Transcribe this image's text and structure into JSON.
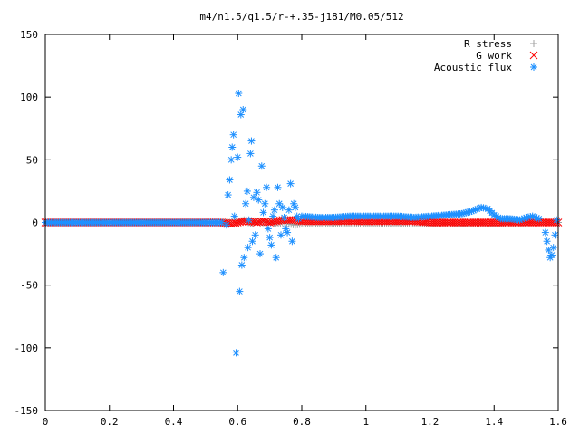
{
  "chart_data": {
    "type": "scatter",
    "title": "m4/n1.5/q1.5/r-+.35-j181/M0.05/512",
    "xlabel": "",
    "ylabel": "",
    "xlim": [
      0,
      1.6
    ],
    "ylim": [
      -150,
      150
    ],
    "x_ticks": [
      "0",
      "0.2",
      "0.4",
      "0.6",
      "0.8",
      "1",
      "1.2",
      "1.4",
      "1.6"
    ],
    "y_ticks": [
      "150",
      "100",
      "50",
      "0",
      "-50",
      "-100",
      "-150"
    ],
    "legend_position": "top-right",
    "series": [
      {
        "name": "R stress",
        "marker": "plus",
        "color": "#a0a0a0",
        "points": [
          [
            0.0,
            0
          ],
          [
            0.1,
            0
          ],
          [
            0.2,
            0
          ],
          [
            0.3,
            0
          ],
          [
            0.4,
            0
          ],
          [
            0.5,
            0
          ],
          [
            0.55,
            0
          ],
          [
            0.6,
            0
          ],
          [
            0.62,
            2
          ],
          [
            0.64,
            -1
          ],
          [
            0.66,
            1
          ],
          [
            0.68,
            0
          ],
          [
            0.7,
            1
          ],
          [
            0.72,
            -1
          ],
          [
            0.74,
            0
          ],
          [
            0.76,
            -1
          ],
          [
            0.78,
            -2
          ],
          [
            0.8,
            -1
          ],
          [
            0.85,
            -1
          ],
          [
            0.9,
            -1
          ],
          [
            1.0,
            -1
          ],
          [
            1.1,
            -1
          ],
          [
            1.2,
            -1
          ],
          [
            1.3,
            -1
          ],
          [
            1.4,
            -1
          ],
          [
            1.5,
            0
          ],
          [
            1.56,
            0
          ],
          [
            1.6,
            0
          ]
        ]
      },
      {
        "name": "G work",
        "marker": "cross",
        "color": "#ff0000",
        "points": [
          [
            0.0,
            0
          ],
          [
            0.1,
            0
          ],
          [
            0.2,
            0
          ],
          [
            0.3,
            0
          ],
          [
            0.4,
            0
          ],
          [
            0.5,
            0
          ],
          [
            0.55,
            0
          ],
          [
            0.58,
            -1
          ],
          [
            0.6,
            0
          ],
          [
            0.62,
            1
          ],
          [
            0.64,
            1
          ],
          [
            0.66,
            0
          ],
          [
            0.68,
            1
          ],
          [
            0.7,
            0
          ],
          [
            0.72,
            1
          ],
          [
            0.74,
            2
          ],
          [
            0.76,
            2
          ],
          [
            0.78,
            2
          ],
          [
            0.8,
            1
          ],
          [
            0.85,
            1
          ],
          [
            0.9,
            1
          ],
          [
            0.95,
            1
          ],
          [
            1.0,
            1
          ],
          [
            1.05,
            1
          ],
          [
            1.1,
            1
          ],
          [
            1.15,
            1
          ],
          [
            1.2,
            0
          ],
          [
            1.25,
            0
          ],
          [
            1.3,
            0
          ],
          [
            1.35,
            0
          ],
          [
            1.4,
            0
          ],
          [
            1.45,
            0
          ],
          [
            1.5,
            0
          ],
          [
            1.55,
            0
          ],
          [
            1.6,
            0
          ]
        ]
      },
      {
        "name": "Acoustic flux",
        "marker": "star",
        "color": "#1e90ff",
        "points": [
          [
            0.0,
            0
          ],
          [
            0.05,
            0
          ],
          [
            0.1,
            0
          ],
          [
            0.15,
            0
          ],
          [
            0.2,
            0
          ],
          [
            0.25,
            0
          ],
          [
            0.3,
            0
          ],
          [
            0.35,
            0
          ],
          [
            0.4,
            0
          ],
          [
            0.45,
            0
          ],
          [
            0.5,
            0
          ],
          [
            0.55,
            0
          ],
          [
            0.555,
            -40
          ],
          [
            0.565,
            -2
          ],
          [
            0.57,
            22
          ],
          [
            0.575,
            34
          ],
          [
            0.58,
            50
          ],
          [
            0.583,
            60
          ],
          [
            0.587,
            70
          ],
          [
            0.59,
            5
          ],
          [
            0.595,
            -104
          ],
          [
            0.6,
            52
          ],
          [
            0.603,
            103
          ],
          [
            0.606,
            -55
          ],
          [
            0.61,
            86
          ],
          [
            0.613,
            -34
          ],
          [
            0.617,
            90
          ],
          [
            0.62,
            -28
          ],
          [
            0.625,
            15
          ],
          [
            0.63,
            25
          ],
          [
            0.632,
            -20
          ],
          [
            0.635,
            2
          ],
          [
            0.64,
            55
          ],
          [
            0.643,
            65
          ],
          [
            0.646,
            -15
          ],
          [
            0.65,
            20
          ],
          [
            0.655,
            -10
          ],
          [
            0.66,
            24
          ],
          [
            0.665,
            18
          ],
          [
            0.67,
            -25
          ],
          [
            0.675,
            45
          ],
          [
            0.68,
            8
          ],
          [
            0.685,
            15
          ],
          [
            0.69,
            28
          ],
          [
            0.695,
            -5
          ],
          [
            0.7,
            -12
          ],
          [
            0.705,
            -18
          ],
          [
            0.71,
            5
          ],
          [
            0.715,
            10
          ],
          [
            0.72,
            -28
          ],
          [
            0.725,
            28
          ],
          [
            0.73,
            15
          ],
          [
            0.735,
            -10
          ],
          [
            0.74,
            12
          ],
          [
            0.745,
            4
          ],
          [
            0.75,
            -5
          ],
          [
            0.755,
            -8
          ],
          [
            0.76,
            10
          ],
          [
            0.765,
            31
          ],
          [
            0.77,
            -15
          ],
          [
            0.775,
            15
          ],
          [
            0.78,
            12
          ],
          [
            0.785,
            5
          ],
          [
            0.79,
            3
          ],
          [
            0.8,
            5
          ],
          [
            0.85,
            4
          ],
          [
            0.9,
            4
          ],
          [
            0.95,
            5
          ],
          [
            1.0,
            5
          ],
          [
            1.05,
            5
          ],
          [
            1.1,
            5
          ],
          [
            1.15,
            4
          ],
          [
            1.2,
            5
          ],
          [
            1.25,
            6
          ],
          [
            1.3,
            7
          ],
          [
            1.33,
            9
          ],
          [
            1.36,
            12
          ],
          [
            1.38,
            11
          ],
          [
            1.4,
            6
          ],
          [
            1.42,
            3
          ],
          [
            1.45,
            3
          ],
          [
            1.48,
            2
          ],
          [
            1.5,
            4
          ],
          [
            1.52,
            5
          ],
          [
            1.54,
            3
          ],
          [
            1.56,
            -8
          ],
          [
            1.565,
            -15
          ],
          [
            1.57,
            -22
          ],
          [
            1.575,
            -28
          ],
          [
            1.58,
            -26
          ],
          [
            1.585,
            -20
          ],
          [
            1.59,
            -10
          ],
          [
            1.595,
            2
          ]
        ]
      }
    ]
  }
}
